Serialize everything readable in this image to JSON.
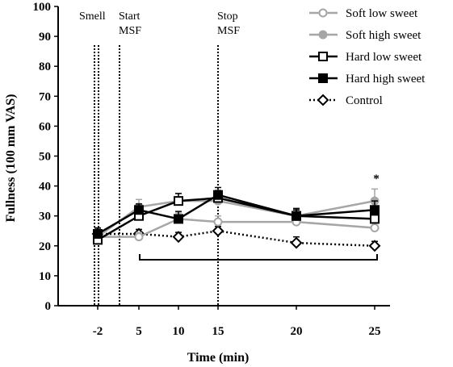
{
  "chart_data": {
    "type": "line",
    "xlabel": "Time (min)",
    "ylabel": "Fullness (100 mm VAS)",
    "ylim": [
      0,
      100
    ],
    "yticks": [
      0,
      10,
      20,
      30,
      40,
      50,
      60,
      70,
      80,
      90,
      100
    ],
    "x_categories": [
      "-2",
      "5",
      "10",
      "15",
      "20",
      "25"
    ],
    "phase_markers": [
      {
        "label_lines": [
          "Smell"
        ],
        "position": "before -2",
        "style": "double-dotted"
      },
      {
        "label_lines": [
          "Start",
          "MSF"
        ],
        "position": "between -2 and 5",
        "style": "dotted"
      },
      {
        "label_lines": [
          "Stop",
          "MSF"
        ],
        "position": "at 15",
        "style": "dotted"
      }
    ],
    "significance_marker": {
      "label": "*",
      "x": "25"
    },
    "significance_bracket": {
      "from": "5",
      "to": "25"
    },
    "series": [
      {
        "name": "Soft low sweet",
        "color": "#a6a6a6",
        "marker": "open-circle",
        "line": "solid",
        "values": [
          23,
          23,
          29,
          28,
          28,
          26
        ],
        "errors": [
          1.5,
          1.5,
          2,
          2,
          2,
          2
        ]
      },
      {
        "name": "Soft high sweet",
        "color": "#a6a6a6",
        "marker": "filled-circle",
        "line": "solid",
        "values": [
          23,
          33,
          35,
          35,
          30,
          35
        ],
        "errors": [
          1.5,
          2.5,
          2.5,
          2.5,
          2.5,
          4
        ]
      },
      {
        "name": "Hard low sweet",
        "color": "#000000",
        "marker": "open-square",
        "line": "solid",
        "values": [
          22,
          30,
          35,
          36,
          30,
          29
        ],
        "errors": [
          1.5,
          2,
          2.5,
          2.5,
          2,
          2
        ]
      },
      {
        "name": "Hard high sweet",
        "color": "#000000",
        "marker": "filled-square",
        "line": "solid",
        "values": [
          24,
          32,
          29,
          37,
          30,
          32
        ],
        "errors": [
          2,
          2,
          2.5,
          2.5,
          2.5,
          3
        ]
      },
      {
        "name": "Control",
        "color": "#000000",
        "marker": "open-diamond",
        "line": "dotted",
        "values": [
          24,
          24,
          23,
          25,
          21,
          20
        ],
        "errors": [
          1.5,
          1.5,
          1.5,
          1.5,
          2,
          1.5
        ]
      }
    ],
    "legend_position": "top-right",
    "grid": false
  }
}
